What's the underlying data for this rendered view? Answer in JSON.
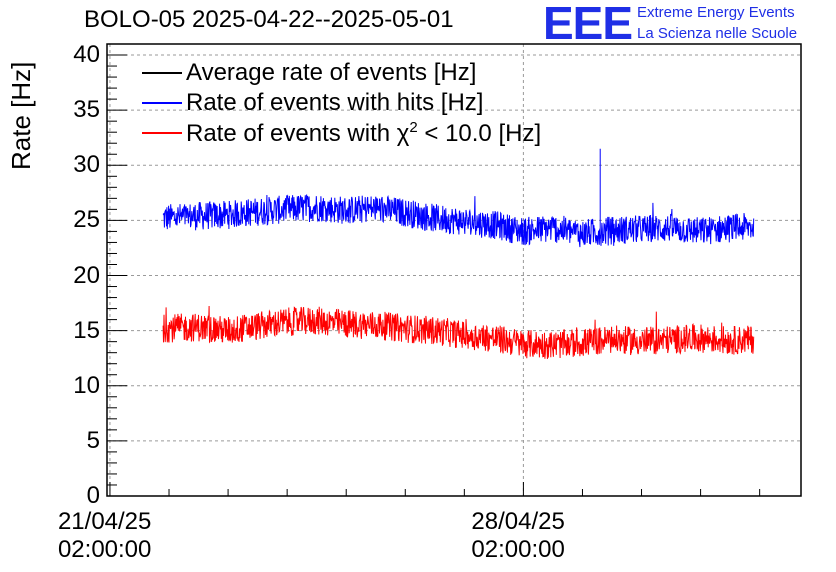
{
  "chart_data": {
    "type": "line",
    "title": "BOLO-05 2025-04-22--2025-05-01",
    "ylabel": "Rate [Hz]",
    "xlabel": "",
    "ylim": [
      0,
      41
    ],
    "y_ticks": [
      "0",
      "5",
      "10",
      "15",
      "20",
      "25",
      "30",
      "35",
      "40"
    ],
    "x_ticks": [
      {
        "date": "21/04/25",
        "time": "02:00:00",
        "day": 0
      },
      {
        "date": "28/04/25",
        "time": "02:00:00",
        "day": 7
      }
    ],
    "xlim_days": [
      -0.05,
      11.7
    ],
    "grid": true,
    "legend_position": "top-left",
    "series": [
      {
        "name": "Average rate of events [Hz]",
        "color": "#000000",
        "values": []
      },
      {
        "name": "Rate of events with hits [Hz]",
        "color": "#0000ff",
        "x_days": [
          0.9,
          1.5,
          2.0,
          2.5,
          3.0,
          3.5,
          4.0,
          4.5,
          5.0,
          5.5,
          6.0,
          6.5,
          7.0,
          7.5,
          8.0,
          8.5,
          9.0,
          9.5,
          10.0,
          10.5,
          10.9
        ],
        "values": [
          25.2,
          25.4,
          25.5,
          25.8,
          26.0,
          26.2,
          25.9,
          26.1,
          25.7,
          25.2,
          24.9,
          24.6,
          24.0,
          24.3,
          23.8,
          24.1,
          24.2,
          24.3,
          24.0,
          24.3,
          24.4
        ],
        "spike": {
          "x_day": 8.3,
          "value": 31.5
        }
      },
      {
        "name": "Rate of events with χ² < 10.0 [Hz]",
        "color": "#ff0000",
        "x_days": [
          0.9,
          1.5,
          2.0,
          2.5,
          3.0,
          3.5,
          4.0,
          4.5,
          5.0,
          5.5,
          6.0,
          6.5,
          7.0,
          7.5,
          8.0,
          8.5,
          9.0,
          9.5,
          10.0,
          10.5,
          10.9
        ],
        "values": [
          15.2,
          15.3,
          15.0,
          15.4,
          15.8,
          15.9,
          15.6,
          15.5,
          15.2,
          15.0,
          14.6,
          14.3,
          13.8,
          13.7,
          13.9,
          14.2,
          14.0,
          14.2,
          14.3,
          14.1,
          14.2
        ]
      }
    ]
  },
  "logo": {
    "mark": "EEE",
    "line1": "Extreme Energy Events",
    "line2": "La Scienza nelle Scuole"
  },
  "legend": {
    "avg": "Average rate of events [Hz]",
    "hits": "Rate of events with hits [Hz]",
    "chi_prefix": "Rate of events with χ",
    "chi_sup": "2",
    "chi_suffix": " < 10.0 [Hz]"
  }
}
